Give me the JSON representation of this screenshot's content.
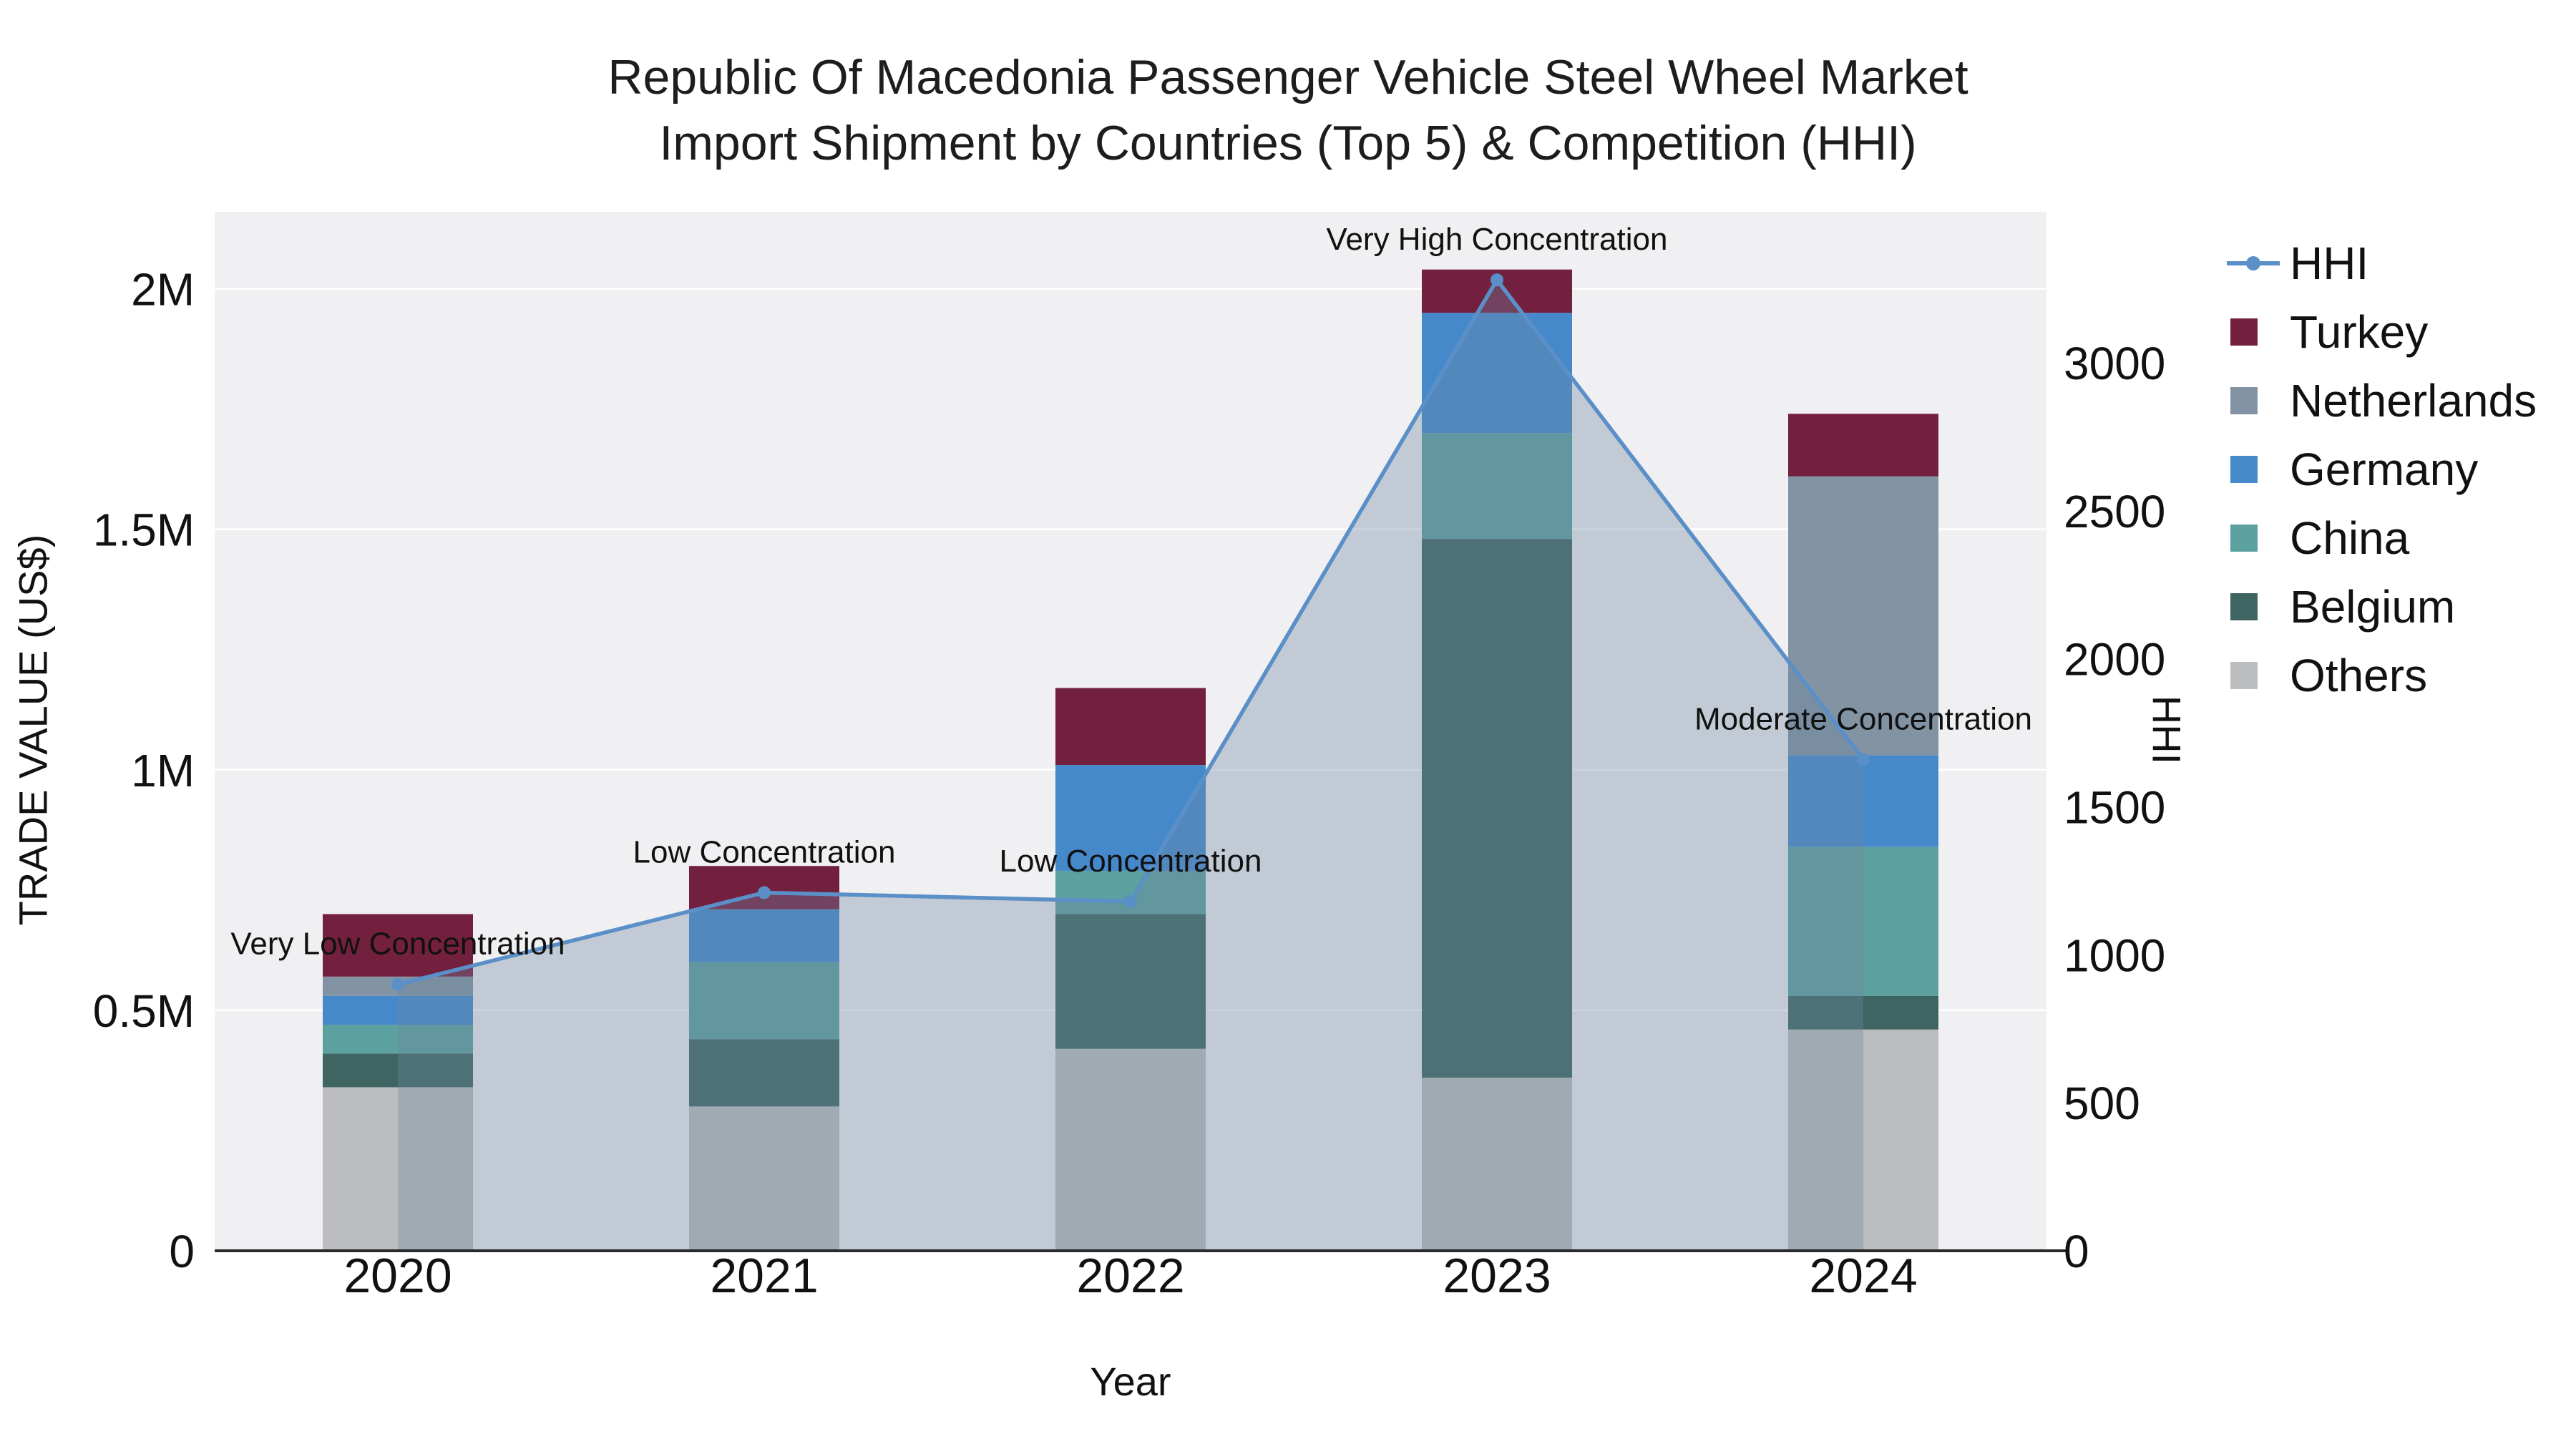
{
  "chart_data": {
    "type": "bar",
    "subtype": "stacked-bars-with-line-overlay",
    "title_line1": "Republic Of Macedonia Passenger Vehicle Steel Wheel Market",
    "title_line2": "Import Shipment by Countries (Top 5) & Competition (HHI)",
    "xlabel": "Year",
    "ylabel_left": "TRADE VALUE (US$)",
    "ylabel_right": "HHI",
    "unit_left": "US$ millions",
    "categories": [
      "2020",
      "2021",
      "2022",
      "2023",
      "2024"
    ],
    "bar_series": [
      {
        "name": "Others",
        "color": "#bcbdbe",
        "values": [
          0.34,
          0.3,
          0.42,
          0.36,
          0.46
        ]
      },
      {
        "name": "Belgium",
        "color": "#3e6561",
        "values": [
          0.07,
          0.14,
          0.28,
          1.12,
          0.07
        ]
      },
      {
        "name": "China",
        "color": "#5da0a0",
        "values": [
          0.06,
          0.16,
          0.09,
          0.22,
          0.31
        ]
      },
      {
        "name": "Germany",
        "color": "#4589cb",
        "values": [
          0.06,
          0.11,
          0.22,
          0.25,
          0.19
        ]
      },
      {
        "name": "Netherlands",
        "color": "#8293a4",
        "values": [
          0.04,
          0.0,
          0.0,
          0.0,
          0.58
        ]
      },
      {
        "name": "Turkey",
        "color": "#73203e",
        "values": [
          0.13,
          0.09,
          0.16,
          0.09,
          0.13
        ]
      }
    ],
    "bar_totals": [
      0.7,
      0.8,
      1.17,
      2.04,
      1.74
    ],
    "line_series": {
      "name": "HHI",
      "color": "#5b8fc8",
      "values": [
        900,
        1210,
        1180,
        3280,
        1660
      ]
    },
    "area_fill": "#6e87a0",
    "area_opacity": 0.35,
    "y_left_range": [
      0,
      2.16
    ],
    "y_right_range": [
      0,
      3510
    ],
    "y_left_ticks": [
      {
        "value": 0,
        "label": "0"
      },
      {
        "value": 0.5,
        "label": "0.5M"
      },
      {
        "value": 1,
        "label": "1M"
      },
      {
        "value": 1.5,
        "label": "1.5M"
      },
      {
        "value": 2,
        "label": "2M"
      }
    ],
    "y_right_ticks": [
      {
        "value": 0,
        "label": "0"
      },
      {
        "value": 500,
        "label": "500"
      },
      {
        "value": 1000,
        "label": "1000"
      },
      {
        "value": 1500,
        "label": "1500"
      },
      {
        "value": 2000,
        "label": "2000"
      },
      {
        "value": 2500,
        "label": "2500"
      },
      {
        "value": 3000,
        "label": "3000"
      }
    ],
    "annotations": [
      {
        "category": "2020",
        "hhi": 900,
        "text": "Very Low Concentration"
      },
      {
        "category": "2021",
        "hhi": 1210,
        "text": "Low Concentration"
      },
      {
        "category": "2022",
        "hhi": 1180,
        "text": "Low Concentration"
      },
      {
        "category": "2023",
        "hhi": 3280,
        "text": "Very High Concentration"
      },
      {
        "category": "2024",
        "hhi": 1660,
        "text": "Moderate Concentration"
      }
    ],
    "legend": [
      {
        "name": "HHI",
        "type": "line",
        "color": "#5b8fc8"
      },
      {
        "name": "Turkey",
        "type": "square",
        "color": "#73203e"
      },
      {
        "name": "Netherlands",
        "type": "square",
        "color": "#8293a4"
      },
      {
        "name": "Germany",
        "type": "square",
        "color": "#4589cb"
      },
      {
        "name": "China",
        "type": "square",
        "color": "#5da0a0"
      },
      {
        "name": "Belgium",
        "type": "square",
        "color": "#3e6561"
      },
      {
        "name": "Others",
        "type": "square",
        "color": "#bcbdbe"
      }
    ],
    "plot_bg": "#f0f0f2",
    "grid_color": "#ffffff",
    "axis_line_color": "#2a2a2a",
    "text_color": "#111111"
  }
}
